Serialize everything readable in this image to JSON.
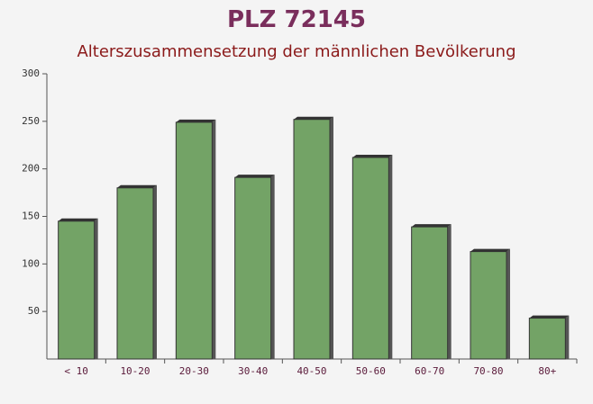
{
  "chart_data": {
    "type": "bar",
    "title": "PLZ 72145",
    "subtitle": "Alterszusammensetzung der männlichen Bevölkerung",
    "categories": [
      "< 10",
      "10-20",
      "20-30",
      "30-40",
      "40-50",
      "50-60",
      "60-70",
      "70-80",
      "80+"
    ],
    "values": [
      145,
      180,
      249,
      191,
      252,
      212,
      139,
      113,
      43
    ],
    "color": "#6b9e5e",
    "ylim": [
      0,
      300
    ],
    "yticks": [
      50,
      100,
      150,
      200,
      250,
      300
    ]
  }
}
